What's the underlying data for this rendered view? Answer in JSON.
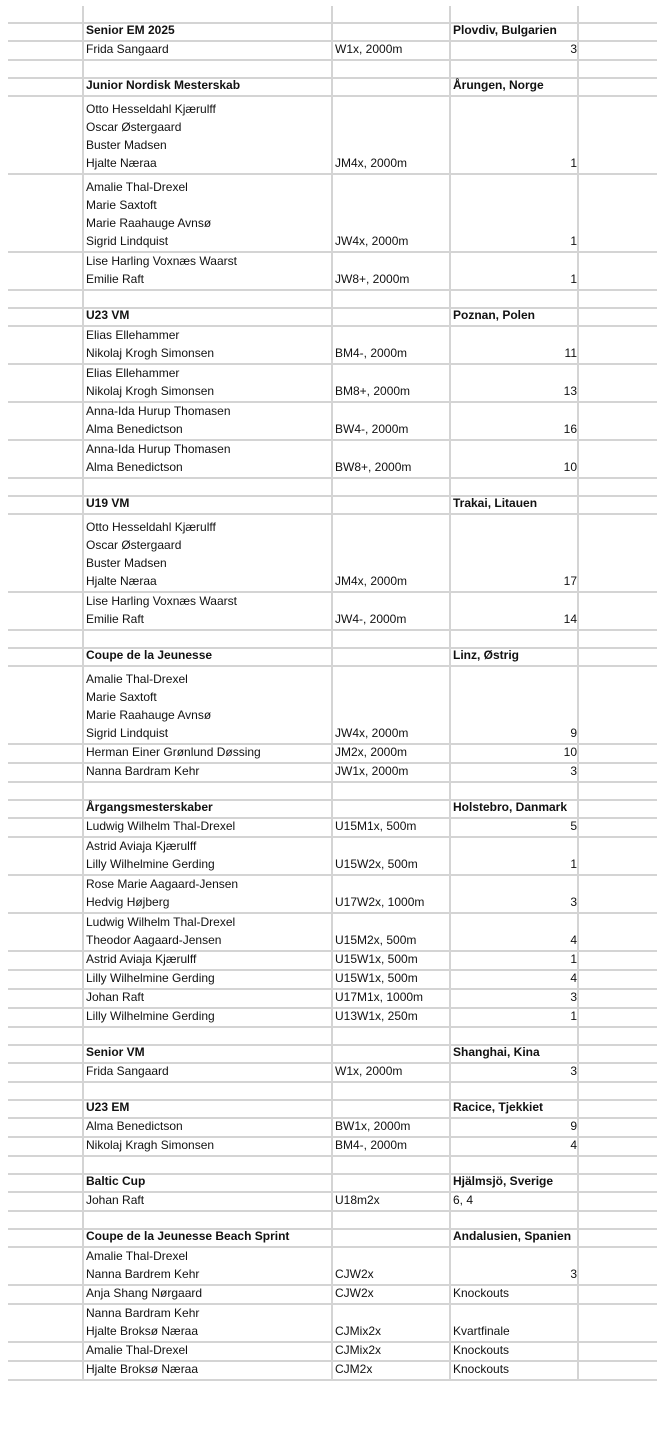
{
  "rows": [
    {
      "type": "title",
      "title": "Senior EM 2025",
      "location": "Plovdiv, Bulgarien"
    },
    {
      "type": "entry",
      "names": [
        "Frida Sangaard"
      ],
      "event": "W1x, 2000m",
      "result": 3
    },
    {
      "type": "blank"
    },
    {
      "type": "title",
      "title": "Junior Nordisk Mesterskab",
      "location": "Årungen, Norge"
    },
    {
      "type": "entry",
      "names": [
        "Otto Hesseldahl Kjærulff",
        "Oscar Østergaard",
        "Buster Madsen",
        "Hjalte Næraa"
      ],
      "event": "JM4x, 2000m",
      "result": 1
    },
    {
      "type": "entry",
      "names": [
        "Amalie Thal-Drexel",
        "Marie Saxtoft",
        "Marie Raahauge Avnsø",
        "Sigrid Lindquist"
      ],
      "event": "JW4x, 2000m",
      "result": 1
    },
    {
      "type": "entry",
      "names": [
        "Lise Harling Voxnæs Waarst",
        "Emilie Raft"
      ],
      "event": "JW8+, 2000m",
      "result": 1
    },
    {
      "type": "blank"
    },
    {
      "type": "title",
      "title": "U23 VM",
      "location": "Poznan, Polen"
    },
    {
      "type": "entry",
      "names": [
        "Elias Ellehammer",
        "Nikolaj Krogh Simonsen"
      ],
      "event": "BM4-, 2000m",
      "result": 11
    },
    {
      "type": "entry",
      "names": [
        "Elias Ellehammer",
        "Nikolaj Krogh Simonsen"
      ],
      "event": "BM8+, 2000m",
      "result": 13
    },
    {
      "type": "entry",
      "names": [
        "Anna-Ida Hurup Thomasen",
        "Alma Benedictson"
      ],
      "event": "BW4-, 2000m",
      "result": 16
    },
    {
      "type": "entry",
      "names": [
        "Anna-Ida Hurup Thomasen",
        "Alma Benedictson"
      ],
      "event": "BW8+, 2000m",
      "result": 10
    },
    {
      "type": "blank"
    },
    {
      "type": "title",
      "title": "U19 VM",
      "location": "Trakai, Litauen"
    },
    {
      "type": "entry",
      "names": [
        "Otto Hesseldahl Kjærulff",
        "Oscar Østergaard",
        "Buster Madsen",
        "Hjalte Næraa"
      ],
      "event": "JM4x, 2000m",
      "result": 17
    },
    {
      "type": "entry",
      "names": [
        "Lise Harling Voxnæs Waarst",
        "Emilie Raft"
      ],
      "event": "JW4-, 2000m",
      "result": 14
    },
    {
      "type": "blank"
    },
    {
      "type": "title",
      "title": "Coupe de la Jeunesse",
      "location": "Linz, Østrig"
    },
    {
      "type": "entry",
      "names": [
        "Amalie Thal-Drexel",
        "Marie Saxtoft",
        "Marie Raahauge Avnsø",
        "Sigrid Lindquist"
      ],
      "event": "JW4x, 2000m",
      "result": 9
    },
    {
      "type": "entry",
      "names": [
        "Herman Einer Grønlund Døssing"
      ],
      "event": "JM2x, 2000m",
      "result": 10
    },
    {
      "type": "entry",
      "names": [
        "Nanna Bardram Kehr"
      ],
      "event": "JW1x, 2000m",
      "result": 3
    },
    {
      "type": "blank"
    },
    {
      "type": "title",
      "title": "Årgangsmesterskaber",
      "location": "Holstebro, Danmark"
    },
    {
      "type": "entry",
      "names": [
        "Ludwig Wilhelm Thal-Drexel"
      ],
      "event": "U15M1x, 500m",
      "result": 5
    },
    {
      "type": "entry",
      "names": [
        "Astrid Aviaja Kjærulff",
        "Lilly Wilhelmine Gerding"
      ],
      "event": "U15W2x, 500m",
      "result": 1
    },
    {
      "type": "entry",
      "names": [
        "Rose Marie Aagaard-Jensen",
        "Hedvig Højberg"
      ],
      "event": "U17W2x, 1000m",
      "result": 3
    },
    {
      "type": "entry",
      "names": [
        "Ludwig Wilhelm Thal-Drexel",
        "Theodor Aagaard-Jensen"
      ],
      "event": "U15M2x, 500m",
      "result": 4
    },
    {
      "type": "entry",
      "names": [
        "Astrid Aviaja Kjærulff"
      ],
      "event": "U15W1x, 500m",
      "result": 1
    },
    {
      "type": "entry",
      "names": [
        "Lilly Wilhelmine Gerding"
      ],
      "event": "U15W1x, 500m",
      "result": 4
    },
    {
      "type": "entry",
      "names": [
        "Johan Raft"
      ],
      "event": "U17M1x, 1000m",
      "result": 3
    },
    {
      "type": "entry",
      "names": [
        "Lilly Wilhelmine Gerding"
      ],
      "event": "U13W1x, 250m",
      "result": 1
    },
    {
      "type": "blank"
    },
    {
      "type": "title",
      "title": "Senior VM",
      "location": "Shanghai, Kina"
    },
    {
      "type": "entry",
      "names": [
        "Frida Sangaard"
      ],
      "event": "W1x, 2000m",
      "result": 3
    },
    {
      "type": "blank"
    },
    {
      "type": "title",
      "title": "U23 EM",
      "location": "Racice, Tjekkiet"
    },
    {
      "type": "entry",
      "names": [
        "Alma Benedictson"
      ],
      "event": "BW1x, 2000m",
      "result": 9
    },
    {
      "type": "entry",
      "names": [
        "Nikolaj Kragh Simonsen"
      ],
      "event": "BM4-, 2000m",
      "result": 4
    },
    {
      "type": "blank"
    },
    {
      "type": "title",
      "title": "Baltic Cup",
      "location": "Hjälmsjö, Sverige"
    },
    {
      "type": "entry",
      "names": [
        "Johan Raft"
      ],
      "event": "U18m2x",
      "result": "6, 4"
    },
    {
      "type": "blank"
    },
    {
      "type": "title",
      "title": "Coupe de la Jeunesse Beach Sprint",
      "location": "Andalusien, Spanien"
    },
    {
      "type": "entry",
      "names": [
        "Amalie Thal-Drexel",
        "Nanna Bardrem Kehr"
      ],
      "event": "CJW2x",
      "result": 3
    },
    {
      "type": "entry",
      "names": [
        "Anja Shang Nørgaard"
      ],
      "event": "CJW2x",
      "result": "Knockouts"
    },
    {
      "type": "entry",
      "names": [
        "Nanna Bardram Kehr",
        "Hjalte Broksø Næraa"
      ],
      "event": "CJMix2x",
      "result": "Kvartfinale"
    },
    {
      "type": "entry",
      "names": [
        "Amalie Thal-Drexel"
      ],
      "event": "CJMix2x",
      "result": "Knockouts"
    },
    {
      "type": "entry",
      "names": [
        "Hjalte Broksø Næraa"
      ],
      "event": "CJM2x",
      "result": "Knockouts"
    }
  ]
}
